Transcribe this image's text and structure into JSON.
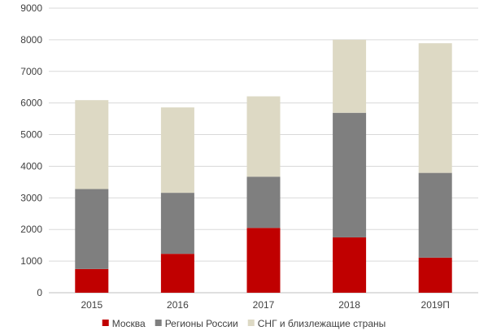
{
  "chart_data": {
    "type": "bar",
    "stacked": true,
    "categories": [
      "2015",
      "2016",
      "2017",
      "2018",
      "2019П"
    ],
    "series": [
      {
        "name": "Москва",
        "color": "#c00000",
        "values": [
          750,
          1230,
          2050,
          1750,
          1110
        ]
      },
      {
        "name": "Регионы России",
        "color": "#7f7f7f",
        "values": [
          2530,
          1930,
          1620,
          3940,
          2680
        ]
      },
      {
        "name": "СНГ и близлежащие страны",
        "color": "#ddd9c4",
        "values": [
          2810,
          2700,
          2540,
          2310,
          4100
        ]
      }
    ],
    "ylim": [
      0,
      9000
    ],
    "yticks": [
      0,
      1000,
      2000,
      3000,
      4000,
      5000,
      6000,
      7000,
      8000,
      9000
    ],
    "grid": true,
    "legend_position": "bottom"
  }
}
